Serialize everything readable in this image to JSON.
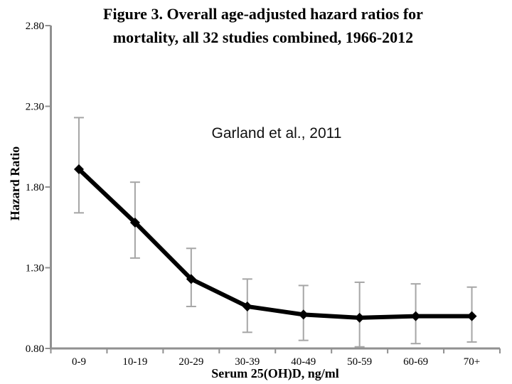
{
  "figure": {
    "title_lines": [
      "Figure 3. Overall age-adjusted hazard ratios for",
      "mortality, all 32 studies combined, 1966-2012"
    ],
    "annotation": "Garland et al., 2011"
  },
  "chart_data": {
    "type": "line",
    "title": "Figure 3. Overall age-adjusted hazard ratios for mortality, all 32 studies combined, 1966-2012",
    "annotation": "Garland et al., 2011",
    "xlabel": "Serum 25(OH)D, ng/ml",
    "ylabel": "Hazard Ratio",
    "categories": [
      "0-9",
      "10-19",
      "20-29",
      "30-39",
      "40-49",
      "50-59",
      "60-69",
      "70+"
    ],
    "series": [
      {
        "name": "Overall age-adjusted hazard ratio",
        "values": [
          1.91,
          1.58,
          1.23,
          1.06,
          1.01,
          0.99,
          1.0,
          1.0
        ],
        "ci_low": [
          1.64,
          1.36,
          1.06,
          0.9,
          0.85,
          0.81,
          0.83,
          0.84
        ],
        "ci_high": [
          2.23,
          1.83,
          1.42,
          1.23,
          1.19,
          1.21,
          1.2,
          1.18
        ]
      }
    ],
    "ylim": [
      0.8,
      2.8
    ],
    "yticks": [
      0.8,
      1.3,
      1.8,
      2.3,
      2.8
    ],
    "ytick_labels": [
      "0.80",
      "1.30",
      "1.80",
      "2.30",
      "2.80"
    ],
    "grid": false,
    "legend": false,
    "marker": "diamond",
    "error_bars": true,
    "colors": {
      "line": "#000000",
      "marker": "#000000",
      "error_bar": "#a6a6a6",
      "axis": "#909090",
      "text": "#000000",
      "background": "#ffffff"
    }
  }
}
